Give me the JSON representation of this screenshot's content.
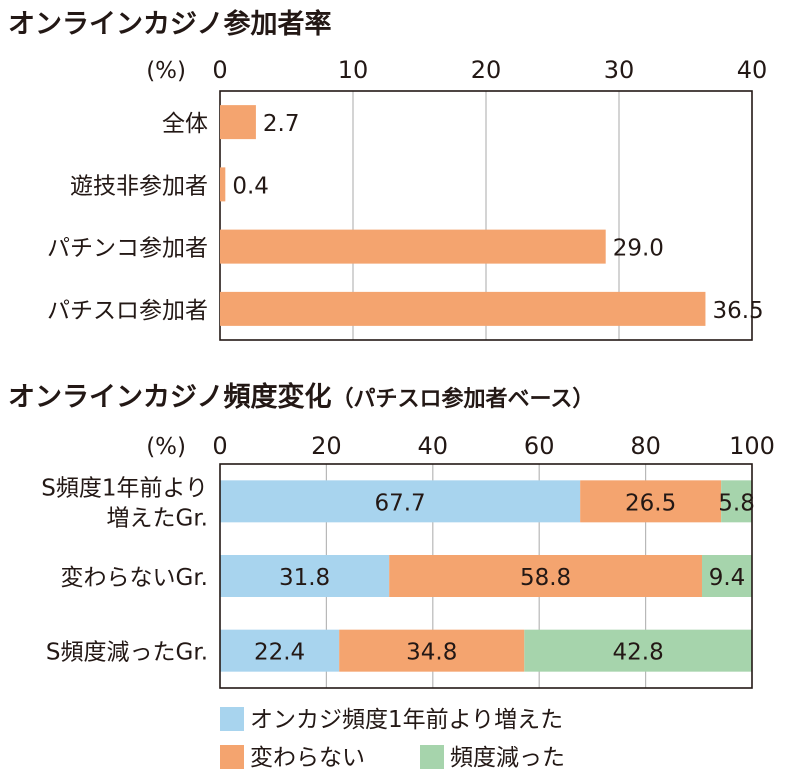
{
  "colors": {
    "orange": "#f4a46f",
    "blue": "#a8d4ee",
    "green": "#a6d4ac",
    "frame": "#231815",
    "grid": "#b8b8b8"
  },
  "chart_data": [
    {
      "type": "bar",
      "orientation": "horizontal",
      "title": "オンラインカジノ参加者率",
      "unit_label": "(%)",
      "xlim": [
        0,
        40
      ],
      "ticks": [
        "0",
        "10",
        "20",
        "30",
        "40"
      ],
      "categories": [
        "全体",
        "遊技非参加者",
        "パチンコ参加者",
        "パチスロ参加者"
      ],
      "values": [
        2.7,
        0.4,
        29.0,
        36.5
      ],
      "value_labels": [
        "2.7",
        "0.4",
        "29.0",
        "36.5"
      ],
      "grid": true
    },
    {
      "type": "bar",
      "orientation": "horizontal",
      "stacked": true,
      "title": "オンラインカジノ頻度変化",
      "subtitle": "（パチスロ参加者ベース）",
      "unit_label": "(%)",
      "xlim": [
        0,
        100
      ],
      "ticks": [
        "0",
        "20",
        "40",
        "60",
        "80",
        "100"
      ],
      "categories": [
        [
          "S頻度1年前より",
          "増えたGr."
        ],
        [
          "変わらないGr."
        ],
        [
          "S頻度減ったGr."
        ]
      ],
      "series": [
        {
          "name": "オンカジ頻度1年前より増えた",
          "color": "#a8d4ee",
          "values": [
            67.7,
            31.8,
            22.4
          ],
          "labels": [
            "67.7",
            "31.8",
            "22.4"
          ]
        },
        {
          "name": "変わらない",
          "color": "#f4a46f",
          "values": [
            26.5,
            58.8,
            34.8
          ],
          "labels": [
            "26.5",
            "58.8",
            "34.8"
          ]
        },
        {
          "name": "頻度減った",
          "color": "#a6d4ac",
          "values": [
            5.8,
            9.4,
            42.8
          ],
          "labels": [
            "5.8",
            "9.4",
            "42.8"
          ]
        }
      ],
      "legend": "bottom",
      "grid": true
    }
  ]
}
